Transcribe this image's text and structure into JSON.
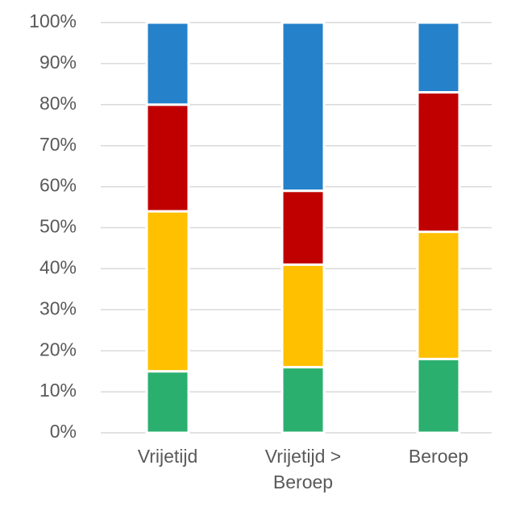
{
  "chart_data": {
    "type": "stacked_bar",
    "categories": [
      "Vrijetijd",
      "Vrijetijd > Beroep",
      "Beroep"
    ],
    "series": [
      {
        "color": "#2baf6f",
        "values": [
          15,
          16,
          18
        ]
      },
      {
        "color": "#ffc000",
        "values": [
          39,
          25,
          31
        ]
      },
      {
        "color": "#c00000",
        "values": [
          26,
          18,
          34
        ]
      },
      {
        "color": "#2581c9",
        "values": [
          20,
          41,
          17
        ]
      }
    ],
    "ylim": [
      0,
      100
    ],
    "yticks": [
      {
        "value": 0,
        "label": "0%"
      },
      {
        "value": 10,
        "label": "10%"
      },
      {
        "value": 20,
        "label": "20%"
      },
      {
        "value": 30,
        "label": "30%"
      },
      {
        "value": 40,
        "label": "40%"
      },
      {
        "value": 50,
        "label": "50%"
      },
      {
        "value": 60,
        "label": "60%"
      },
      {
        "value": 70,
        "label": "70%"
      },
      {
        "value": 80,
        "label": "80%"
      },
      {
        "value": 90,
        "label": "90%"
      },
      {
        "value": 100,
        "label": "100%"
      }
    ],
    "grid": true
  }
}
